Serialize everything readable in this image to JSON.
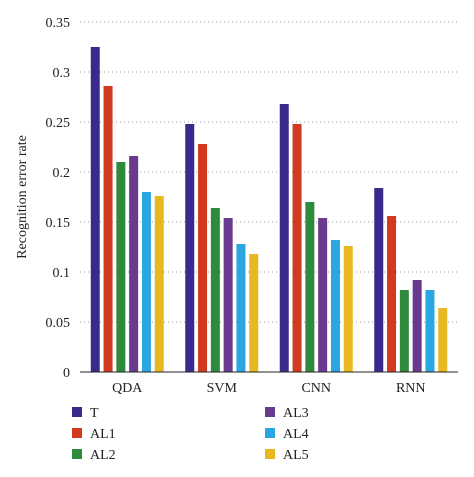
{
  "chart_data": {
    "type": "bar",
    "title": "",
    "xlabel": "",
    "ylabel": "Recognition error rate",
    "ylim": [
      0,
      0.35
    ],
    "yticks": [
      0,
      0.05,
      0.1,
      0.15,
      0.2,
      0.25,
      0.3,
      0.35
    ],
    "ytick_labels": [
      "0",
      "0.05",
      "0.1",
      "0.15",
      "0.2",
      "0.25",
      "0.3",
      "0.35"
    ],
    "grid": "horizontal dotted",
    "legend_position": "bottom",
    "categories": [
      "QDA",
      "SVM",
      "CNN",
      "RNN"
    ],
    "series": [
      {
        "name": "T",
        "color": "#3b2a8c",
        "values": [
          0.325,
          0.248,
          0.268,
          0.184
        ]
      },
      {
        "name": "AL1",
        "color": "#d23a1f",
        "values": [
          0.286,
          0.228,
          0.248,
          0.156
        ]
      },
      {
        "name": "AL2",
        "color": "#2e8b3e",
        "values": [
          0.21,
          0.164,
          0.17,
          0.082
        ]
      },
      {
        "name": "AL3",
        "color": "#6a3a8e",
        "values": [
          0.216,
          0.154,
          0.154,
          0.092
        ]
      },
      {
        "name": "AL4",
        "color": "#2aa6e0",
        "values": [
          0.18,
          0.128,
          0.132,
          0.082
        ]
      },
      {
        "name": "AL5",
        "color": "#e8b820",
        "values": [
          0.176,
          0.118,
          0.126,
          0.064
        ]
      }
    ]
  }
}
